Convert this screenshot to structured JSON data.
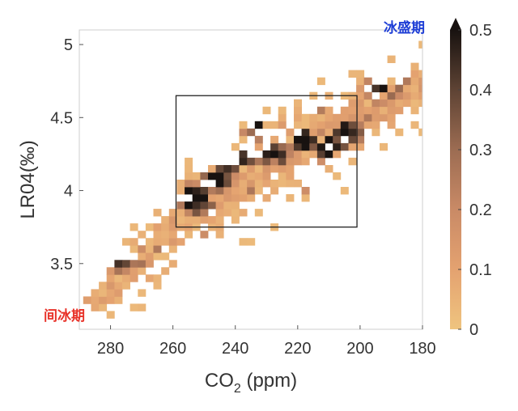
{
  "chart_data": {
    "type": "heatmap",
    "title": "",
    "xlabel": "CO",
    "xlabel_subscript": "2",
    "xlabel_unit": " (ppm)",
    "ylabel": "LR04(‰)",
    "xlim": [
      290,
      180
    ],
    "ylim": [
      3.05,
      5.1
    ],
    "x_reversed": true,
    "x_ticks": [
      280,
      260,
      240,
      220,
      200,
      180
    ],
    "y_ticks": [
      3.5,
      4,
      4.5,
      5
    ],
    "colorbar": {
      "range": [
        0,
        0.5
      ],
      "ticks": [
        0,
        0.1,
        0.2,
        0.3,
        0.4,
        0.5
      ],
      "colors": [
        "#efc47f",
        "#e4a270",
        "#c98a66",
        "#9c6c52",
        "#5e4334",
        "#181210"
      ],
      "extend_top": true
    },
    "cell_size": {
      "co2": 2.5,
      "lr04": 0.05
    },
    "annotations": [
      {
        "text": "间冰期",
        "color": "#e8332a",
        "position": "bottom-left"
      },
      {
        "text": "冰盛期",
        "color": "#1f3fd6",
        "position": "top-right"
      }
    ],
    "highlight_box": {
      "co2": [
        259,
        201
      ],
      "lr04": [
        3.75,
        4.65
      ]
    },
    "density_band": [
      {
        "co2": 285,
        "lr04": 3.25,
        "half_width": 0.1
      },
      {
        "co2": 270,
        "lr04": 3.5,
        "half_width": 0.22
      },
      {
        "co2": 255,
        "lr04": 3.85,
        "half_width": 0.25
      },
      {
        "co2": 240,
        "lr04": 4.05,
        "half_width": 0.25
      },
      {
        "co2": 225,
        "lr04": 4.25,
        "half_width": 0.25
      },
      {
        "co2": 210,
        "lr04": 4.4,
        "half_width": 0.25
      },
      {
        "co2": 195,
        "lr04": 4.55,
        "half_width": 0.25
      },
      {
        "co2": 185,
        "lr04": 4.7,
        "half_width": 0.18
      }
    ],
    "dark_clusters": [
      {
        "co2": 252,
        "lr04": 3.95,
        "value": 0.55
      },
      {
        "co2": 246,
        "lr04": 4.08,
        "value": 0.5
      },
      {
        "co2": 238,
        "lr04": 4.2,
        "value": 0.45
      },
      {
        "co2": 228,
        "lr04": 4.25,
        "value": 0.5
      },
      {
        "co2": 218,
        "lr04": 4.35,
        "value": 0.55
      },
      {
        "co2": 210,
        "lr04": 4.3,
        "value": 0.55
      },
      {
        "co2": 205,
        "lr04": 4.4,
        "value": 0.5
      },
      {
        "co2": 222,
        "lr04": 3.85,
        "value": 0.5
      },
      {
        "co2": 232,
        "lr04": 4.45,
        "value": 0.45
      },
      {
        "co2": 193,
        "lr04": 4.7,
        "value": 0.45
      },
      {
        "co2": 188,
        "lr04": 4.3,
        "value": 0.4
      },
      {
        "co2": 204,
        "lr04": 5.05,
        "value": 0.5
      },
      {
        "co2": 277,
        "lr04": 3.55,
        "value": 0.45
      },
      {
        "co2": 270,
        "lr04": 4.48,
        "value": 0.4
      }
    ]
  }
}
